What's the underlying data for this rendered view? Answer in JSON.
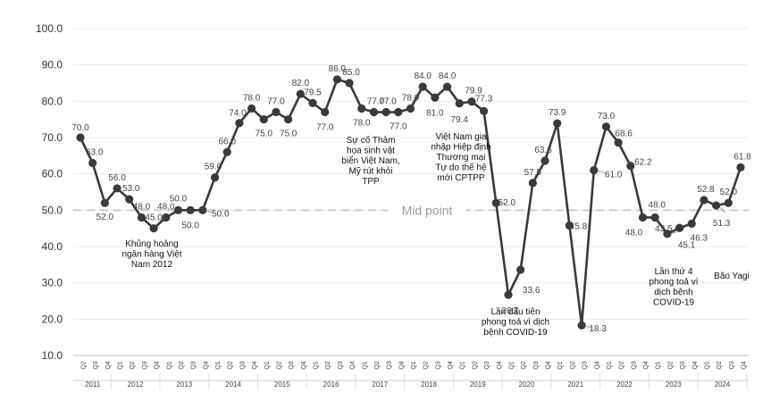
{
  "chart_data": {
    "type": "line",
    "title": "",
    "xlabel": "",
    "ylabel": "",
    "ylim": [
      10,
      100
    ],
    "y_ticks": [
      "10.0",
      "20.0",
      "30.0",
      "40.0",
      "50.0",
      "60.0",
      "70.0",
      "80.0",
      "90.0",
      "100.0"
    ],
    "grid": true,
    "legend": "none",
    "x": [
      "Q2 2011",
      "Q3 2011",
      "Q4 2011",
      "Q1 2012",
      "Q2 2012",
      "Q3 2012",
      "Q4 2012",
      "Q1 2013",
      "Q2 2013",
      "Q3 2013",
      "Q4 2013",
      "Q1 2014",
      "Q2 2014",
      "Q3 2014",
      "Q4 2014",
      "Q1 2015",
      "Q2 2015",
      "Q3 2015",
      "Q4 2015",
      "Q1 2016",
      "Q2 2016",
      "Q3 2016",
      "Q4 2016",
      "Q1 2017",
      "Q2 2017",
      "Q3 2017",
      "Q4 2017",
      "Q1 2018",
      "Q2 2018",
      "Q3 2018",
      "Q4 2018",
      "Q1 2019",
      "Q2 2019",
      "Q3 2019",
      "Q4 2019",
      "Q1 2020",
      "Q2 2020",
      "Q3 2020",
      "Q4 2020",
      "Q1 2021",
      "Q2 2021",
      "Q3 2021",
      "Q4 2021",
      "Q1 2022",
      "Q2 2022",
      "Q3 2022",
      "Q4 2022",
      "Q1 2023",
      "Q2 2023",
      "Q3 2023",
      "Q4 2023",
      "Q1 2024",
      "Q2 2024",
      "Q3 2024",
      "Q4 2024"
    ],
    "quarter_labels": [
      "Q2",
      "Q3",
      "Q4",
      "Q1",
      "Q2",
      "Q3",
      "Q4",
      "Q1",
      "Q2",
      "Q3",
      "Q4",
      "Q1",
      "Q2",
      "Q3",
      "Q4",
      "Q1",
      "Q2",
      "Q3",
      "Q4",
      "Q1",
      "Q2",
      "Q3",
      "Q4",
      "Q1",
      "Q2",
      "Q3",
      "Q4",
      "Q1",
      "Q2",
      "Q3",
      "Q4",
      "Q1",
      "Q2",
      "Q3",
      "Q4",
      "Q1",
      "Q2",
      "Q3",
      "Q4",
      "Q1",
      "Q2",
      "Q3",
      "Q4",
      "Q1",
      "Q2",
      "Q3",
      "Q4",
      "Q1",
      "Q2",
      "Q3",
      "Q4",
      "Q1",
      "Q2",
      "Q3",
      "Q4"
    ],
    "years": [
      {
        "label": "2011",
        "start": 0,
        "end": 2
      },
      {
        "label": "2012",
        "start": 3,
        "end": 6
      },
      {
        "label": "2013",
        "start": 7,
        "end": 10
      },
      {
        "label": "2014",
        "start": 11,
        "end": 14
      },
      {
        "label": "2015",
        "start": 15,
        "end": 18
      },
      {
        "label": "2016",
        "start": 19,
        "end": 22
      },
      {
        "label": "2017",
        "start": 23,
        "end": 26
      },
      {
        "label": "2018",
        "start": 27,
        "end": 30
      },
      {
        "label": "2019",
        "start": 31,
        "end": 34
      },
      {
        "label": "2020",
        "start": 35,
        "end": 38
      },
      {
        "label": "2021",
        "start": 39,
        "end": 42
      },
      {
        "label": "2022",
        "start": 43,
        "end": 46
      },
      {
        "label": "2023",
        "start": 47,
        "end": 50
      },
      {
        "label": "2024",
        "start": 51,
        "end": 54
      }
    ],
    "series": [
      {
        "values": [
          70.0,
          63.0,
          52.0,
          56.0,
          53.0,
          48.0,
          45.0,
          48.0,
          50.0,
          50.0,
          50.0,
          59.0,
          66.0,
          74.0,
          78.0,
          75.0,
          77.0,
          75.0,
          82.0,
          79.5,
          77.0,
          86.0,
          85.0,
          78.0,
          77.0,
          77.0,
          77.0,
          78.0,
          84.0,
          81.0,
          84.0,
          79.4,
          79.9,
          77.3,
          52.0,
          26.7,
          33.6,
          57.5,
          63.6,
          73.9,
          45.8,
          18.3,
          61.0,
          73.0,
          68.6,
          62.2,
          48.0,
          48.0,
          43.5,
          45.1,
          46.3,
          52.8,
          51.3,
          52.0,
          61.8
        ],
        "labels": [
          "70.0",
          "63.0",
          "52.0",
          "56.0",
          "53.0",
          "48.0",
          "45.0",
          "48.0",
          "50.0",
          "50.0",
          "50.0",
          "59.0",
          "66.0",
          "74.0",
          "78.0",
          "75.0",
          "77.0",
          "75.0",
          "82.0",
          "79.5",
          "77.0",
          "86.0",
          "85.0",
          "78.0",
          "77.0",
          "77.0",
          "77.0",
          "78.0",
          "84.0",
          "81.0",
          "84.0",
          "79.4",
          "79.9",
          "77.3",
          "52.0",
          "26.7",
          "33.6",
          "57.5",
          "63.6",
          "73.9",
          "45.8",
          "18.3",
          "61.0",
          "73.0",
          "68.6",
          "62.2",
          "48.0",
          "48.0",
          "43.5",
          "45.1",
          "46.3",
          "52.8",
          "51.3",
          "52.0",
          "61.8"
        ],
        "color": "#3a3a3a"
      }
    ],
    "reference_line": {
      "value": 50,
      "label": "Mid point",
      "color": "#cccccc"
    },
    "annotations": [
      {
        "index": 6,
        "lines": [
          "Khủng hoảng",
          "ngân hàng Việt",
          "Nam 2012"
        ]
      },
      {
        "index": 24,
        "lines": [
          "Sự cố Thảm",
          "họa sinh vật",
          "biển Việt Nam,",
          "Mỹ rút khỏi",
          "TPP"
        ]
      },
      {
        "index": 31,
        "lines": [
          "Việt Nam gia",
          "nhập Hiệp định",
          "Thương mại",
          "Tự do thế hệ",
          "mới CPTPP"
        ]
      },
      {
        "index": 35,
        "lines": [
          "Lần đầu tiên",
          "phong toả vì dịch",
          "bệnh COVID-19"
        ]
      },
      {
        "index": 49,
        "lines": [
          "Lần thứ 4",
          "phong toả vì",
          "dịch bệnh",
          "COVID-19"
        ]
      },
      {
        "index": 53,
        "lines": [
          "Bão Yagi"
        ]
      }
    ]
  }
}
